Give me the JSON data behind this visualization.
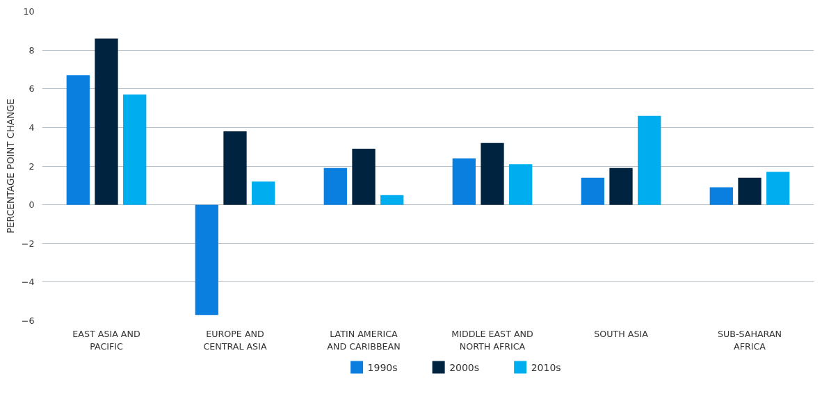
{
  "chart_data": {
    "type": "bar",
    "ylabel": "PERCENTAGE POINT CHANGE",
    "categories": [
      "EAST ASIA AND PACIFIC",
      "EUROPE AND CENTRAL ASIA",
      "LATIN AMERICA AND CARIBBEAN",
      "MIDDLE EAST AND NORTH AFRICA",
      "SOUTH ASIA",
      "SUB-SAHARAN AFRICA"
    ],
    "series": [
      {
        "name": "1990s",
        "color": "#0a7fe0",
        "values": [
          6.7,
          -5.7,
          1.9,
          2.4,
          1.4,
          0.9
        ]
      },
      {
        "name": "2000s",
        "color": "#00233f",
        "values": [
          8.6,
          3.8,
          2.9,
          3.2,
          1.9,
          1.4
        ]
      },
      {
        "name": "2010s",
        "color": "#00aeef",
        "values": [
          5.7,
          1.2,
          0.5,
          2.1,
          4.6,
          1.7
        ]
      }
    ],
    "ylim": [
      -6,
      10
    ],
    "yticks": [
      {
        "value": -6,
        "label": "−6"
      },
      {
        "value": -4,
        "label": "−4"
      },
      {
        "value": -2,
        "label": "−2"
      },
      0,
      2,
      4,
      6,
      8,
      10
    ],
    "grid": "y",
    "legend": "bottom"
  }
}
